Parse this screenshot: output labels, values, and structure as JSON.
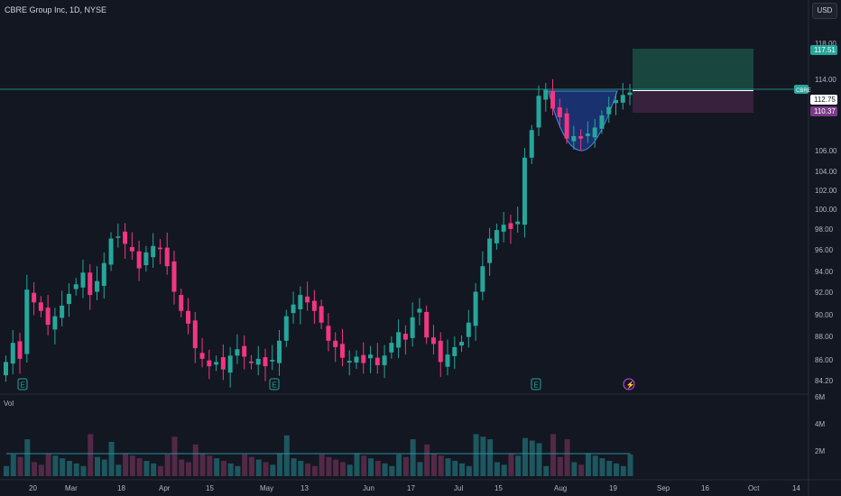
{
  "header": {
    "symbol_title": "CBRE Group Inc, 1D, NYSE",
    "currency": "USD"
  },
  "badges": {
    "symbol": "CBRE",
    "target": "117.51",
    "last": "112.75",
    "stop": "110.37"
  },
  "volume_pane": {
    "label": "Vol",
    "ticks": [
      "6M",
      "4M",
      "2M"
    ]
  },
  "colors": {
    "background": "#131722",
    "up": "#26a69a",
    "down": "#f23681",
    "up_bright": "#00c853",
    "target_zone": "#1b4d44",
    "stop_zone": "#3d2240",
    "cup_fill": "#2962ff",
    "event_marker": "#26a69a",
    "dividend_marker": "#e040fb"
  },
  "chart_data": {
    "type": "candlestick",
    "title": "CBRE Group Inc, 1D, NYSE",
    "ylim": [
      84.2,
      118.0
    ],
    "y_ticks": [
      "118.00",
      "114.00",
      "106.00",
      "104.00",
      "102.00",
      "100.00",
      "98.00",
      "96.00",
      "94.00",
      "92.00",
      "90.00",
      "88.00",
      "86.00",
      "84.20"
    ],
    "x_ticks": [
      "20",
      "Mar",
      "18",
      "Apr",
      "15",
      "May",
      "13",
      "Jun",
      "17",
      "Jul",
      "15",
      "Aug",
      "19",
      "Sep",
      "16",
      "Oct",
      "14"
    ],
    "series_close": [
      86.2,
      88.0,
      86.5,
      93.0,
      91.8,
      91.0,
      89.7,
      90.5,
      91.5,
      92.6,
      93.5,
      94.6,
      92.5,
      93.8,
      95.5,
      97.8,
      98.0,
      97.3,
      96.6,
      95.0,
      96.5,
      97.1,
      96.8,
      95.2,
      92.8,
      91.0,
      89.8,
      87.5,
      86.5,
      85.8,
      86.2,
      85.5,
      86.8,
      87.4,
      86.7,
      86.1,
      86.5,
      85.8,
      86.4,
      88.2,
      90.5,
      91.6,
      92.5,
      91.8,
      91.0,
      89.9,
      88.2,
      87.6,
      86.6,
      86.3,
      86.7,
      86.1,
      86.9,
      85.9,
      86.8,
      88.0,
      89.0,
      88.3,
      90.4,
      91.2,
      88.5,
      87.9,
      86.2,
      86.9,
      87.6,
      88.1,
      89.9,
      92.8,
      95.2,
      97.8,
      98.6,
      99.1,
      98.7,
      99.4,
      105.4,
      108.5,
      112.5,
      113.2,
      111.0,
      110.0,
      107.5,
      107.8,
      107.5,
      108.1,
      108.8,
      110.2,
      111.2,
      112.0,
      112.6,
      112.9
    ],
    "event_markers": [
      "E",
      "E",
      "E"
    ],
    "dividend_marker": "⚡",
    "pattern": "cup",
    "position": {
      "entry": 112.75,
      "target": 117.51,
      "stop": 110.37
    },
    "grid": false
  }
}
